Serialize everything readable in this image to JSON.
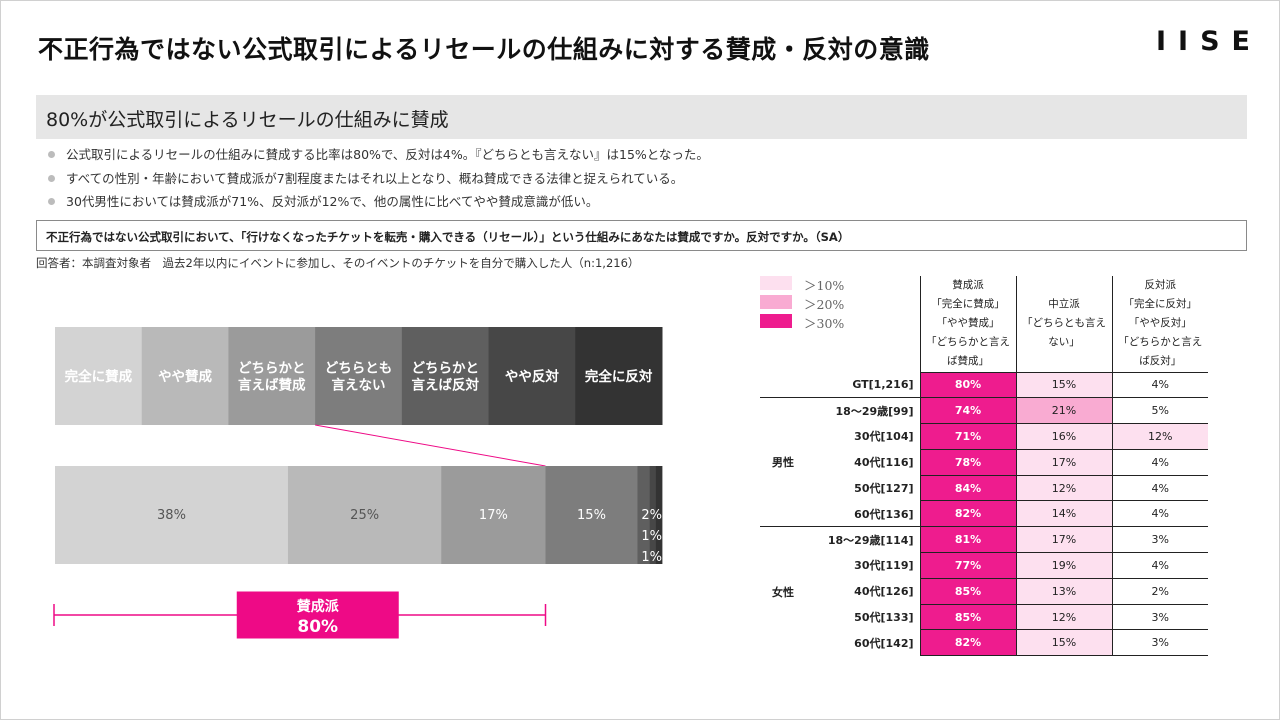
{
  "title": "不正行為ではない公式取引によるリセールの仕組みに対する賛成・反対の意識",
  "brand": "IISE",
  "headline": "80%が公式取引によるリセールの仕組みに賛成",
  "bullets": [
    "公式取引によるリセールの仕組みに賛成する比率は80%で、反対は4%。『どちらとも言えない』は15%となった。",
    "すべての性別・年齢において賛成派が7割程度またはそれ以上となり、概ね賛成できる法律と捉えられている。",
    "30代男性においては賛成派が71%、反対派が12%で、他の属性に比べてやや賛成意識が低い。"
  ],
  "question": "不正行為ではない公式取引において、「行けなくなったチケットを転売・購入できる（リセール）」という仕組みにあなたは賛成ですか。反対ですか。（SA）",
  "respondent": "回答者：本調査対象者　過去2年以内にイベントに参加し、そのイベントのチケットを自分で購入した人（n:1,216）",
  "colors": {
    "accent": "#ee0a86",
    "heat_30": "#ee1c8e",
    "heat_20": "#f9abd2",
    "heat_10": "#fde0ef"
  },
  "chart_data": [
    {
      "type": "bar",
      "orientation": "horizontal-stacked",
      "categories": [
        "完全に賛成",
        "やや賛成",
        "どちらかと言えば賛成",
        "どちらとも言えない",
        "どちらかと言えば反対",
        "やや反対",
        "完全に反対"
      ],
      "legend_labels": [
        [
          "完全に賛成"
        ],
        [
          "やや賛成"
        ],
        [
          "どちらかと",
          "言えば賛成"
        ],
        [
          "どちらとも",
          "言えない"
        ],
        [
          "どちらかと",
          "言えば反対"
        ],
        [
          "やや反対"
        ],
        [
          "完全に反対"
        ]
      ],
      "values": [
        38,
        25,
        17,
        15,
        2,
        1,
        1
      ],
      "value_labels": [
        "38%",
        "25%",
        "17%",
        "15%",
        "2%",
        "1%",
        "1%"
      ],
      "unit": "%",
      "colors": [
        "#d3d3d3",
        "#b9b9b9",
        "#9b9b9b",
        "#7d7d7d",
        "#5f5f5f",
        "#474747",
        "#333333"
      ],
      "bracket": {
        "label": "賛成派",
        "value_label": "80%",
        "value": 80,
        "covers": [
          "完全に賛成",
          "やや賛成",
          "どちらかと言えば賛成"
        ]
      }
    },
    {
      "type": "table",
      "legend": [
        {
          "label": "＞10%",
          "color": "#fde0ef"
        },
        {
          "label": "＞20%",
          "color": "#f9abd2"
        },
        {
          "label": "＞30%",
          "color": "#ee1c8e"
        }
      ],
      "columns": [
        {
          "lines": [
            "賛成派",
            "「完全に賛成」",
            "「やや賛成」",
            "「どちらかと言え",
            "ば賛成」"
          ]
        },
        {
          "lines": [
            "中立派",
            "「どちらとも言え",
            "ない」"
          ]
        },
        {
          "lines": [
            "反対派",
            "「完全に反対」",
            "「やや反対」",
            "「どちらかと言え",
            "ば反対」"
          ]
        }
      ],
      "rows": [
        {
          "group": "",
          "label": "GT[1,216]",
          "values": [
            80,
            15,
            4
          ]
        },
        {
          "group": "男性",
          "label": "18～29歳[99]",
          "values": [
            74,
            21,
            5
          ]
        },
        {
          "group": "男性",
          "label": "30代[104]",
          "values": [
            71,
            16,
            12
          ]
        },
        {
          "group": "男性",
          "label": "40代[116]",
          "values": [
            78,
            17,
            4
          ]
        },
        {
          "group": "男性",
          "label": "50代[127]",
          "values": [
            84,
            12,
            4
          ]
        },
        {
          "group": "男性",
          "label": "60代[136]",
          "values": [
            82,
            14,
            4
          ]
        },
        {
          "group": "女性",
          "label": "18～29歳[114]",
          "values": [
            81,
            17,
            3
          ]
        },
        {
          "group": "女性",
          "label": "30代[119]",
          "values": [
            77,
            19,
            4
          ]
        },
        {
          "group": "女性",
          "label": "40代[126]",
          "values": [
            85,
            13,
            2
          ]
        },
        {
          "group": "女性",
          "label": "50代[133]",
          "values": [
            85,
            12,
            3
          ]
        },
        {
          "group": "女性",
          "label": "60代[142]",
          "values": [
            82,
            15,
            3
          ]
        }
      ],
      "unit": "%"
    }
  ]
}
